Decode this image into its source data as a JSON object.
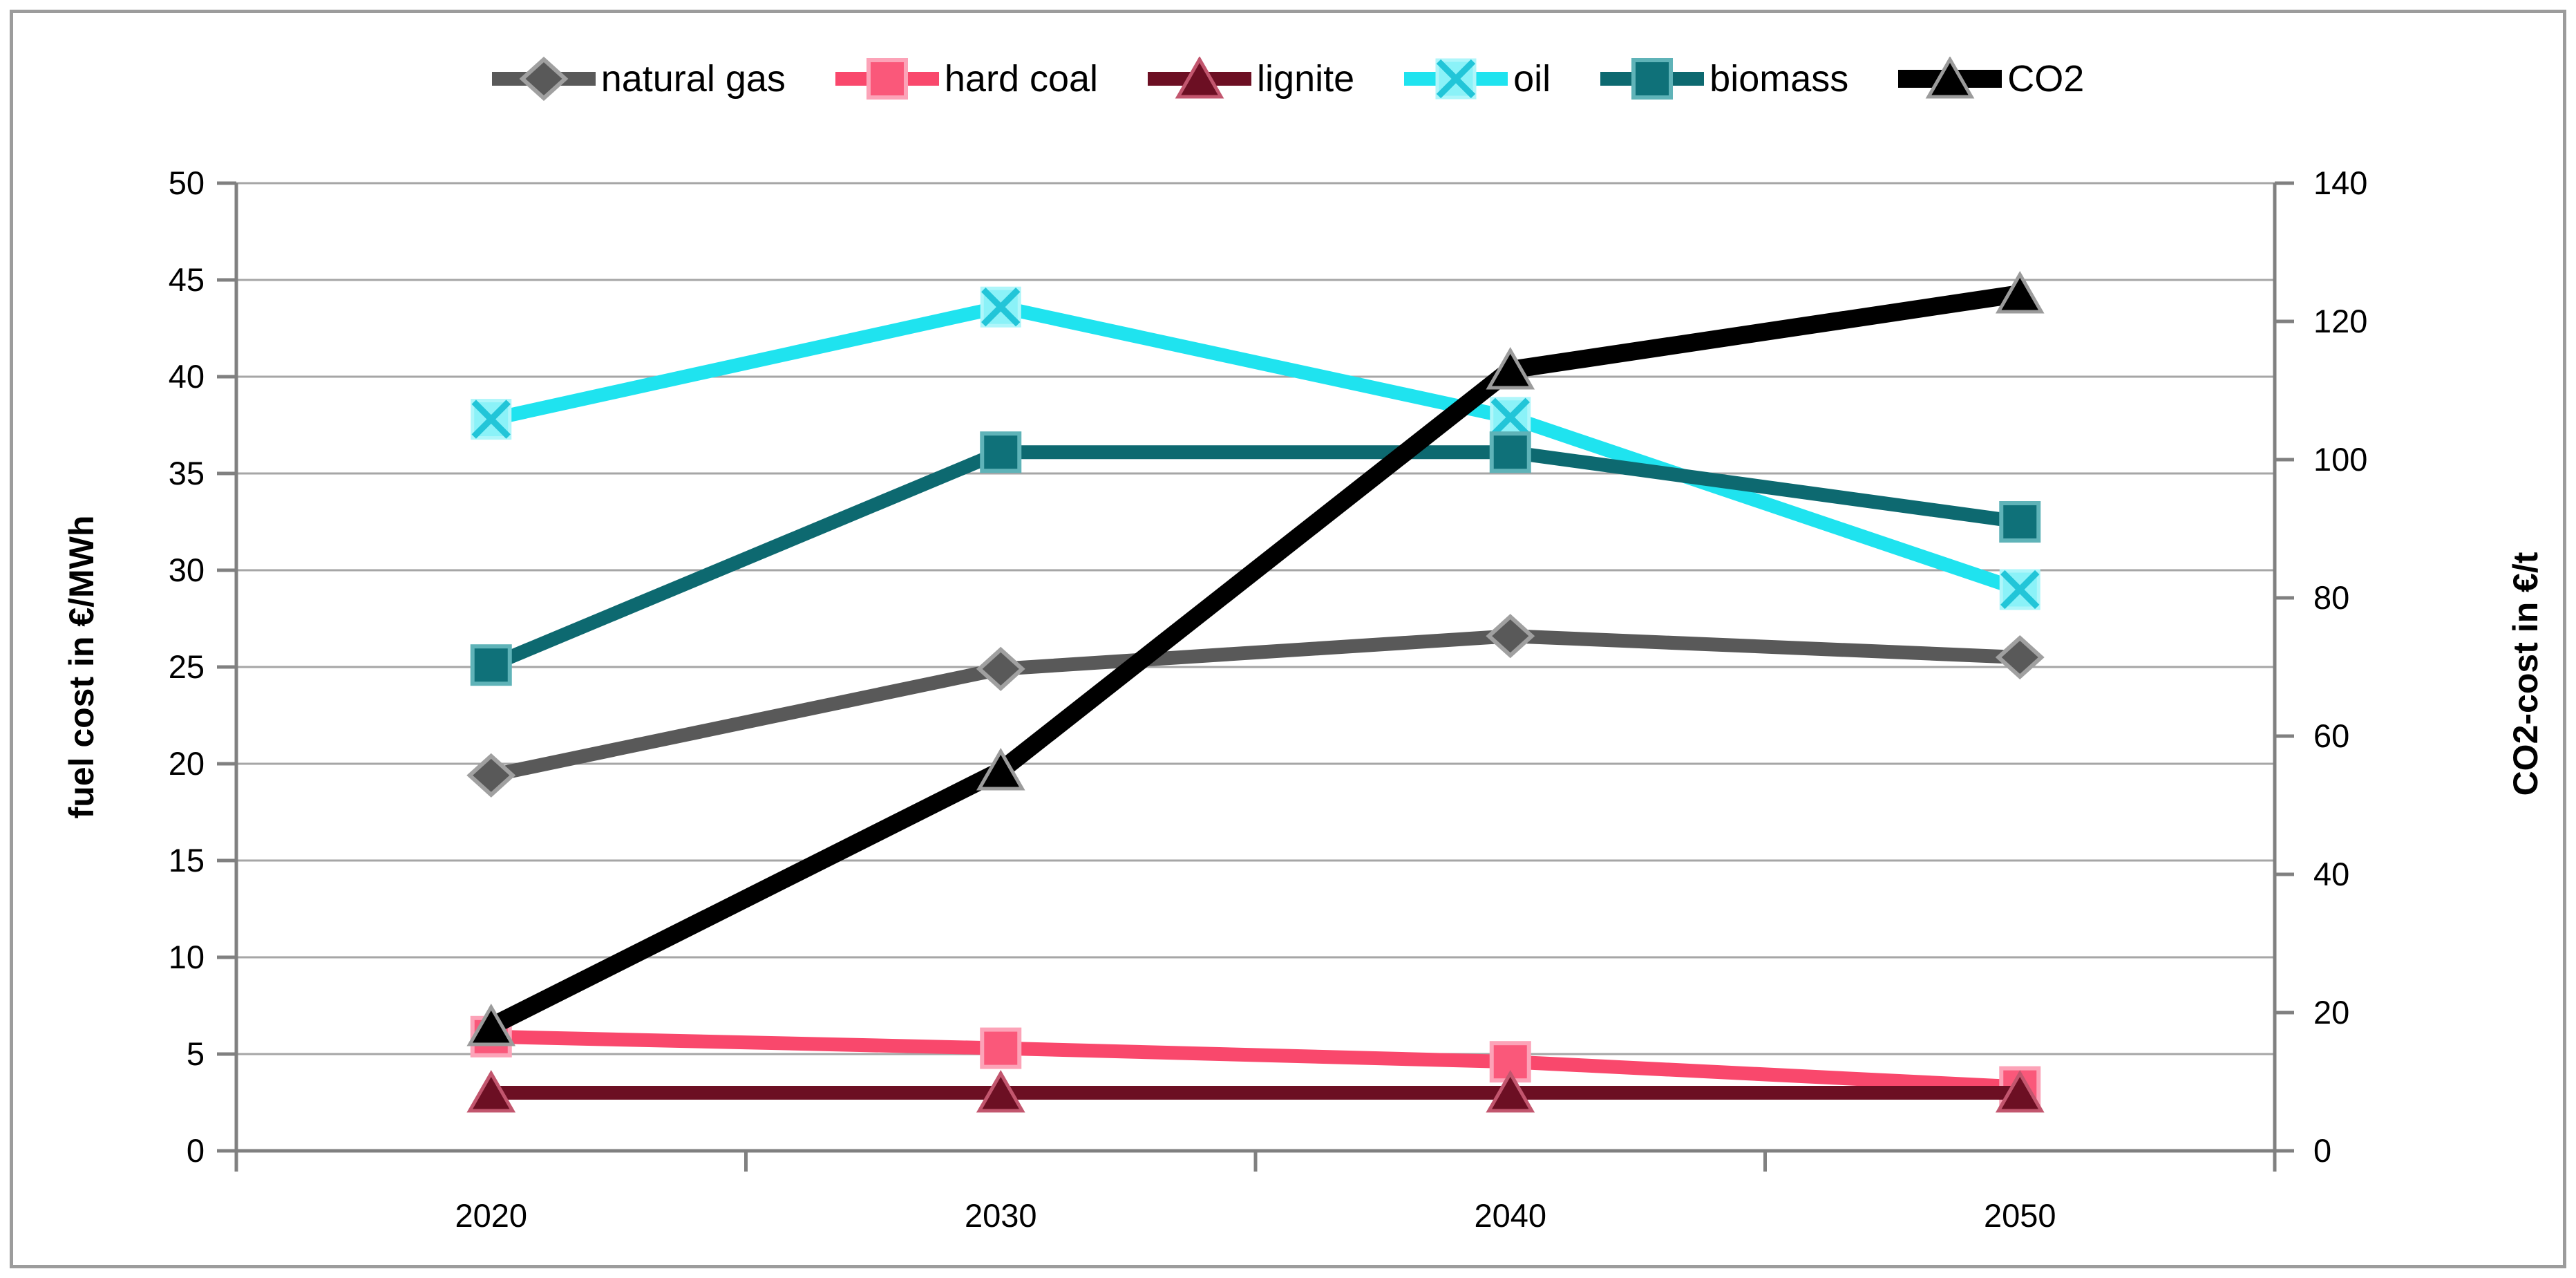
{
  "chart_data": {
    "type": "line",
    "title": "",
    "categories": [
      "2020",
      "2030",
      "2040",
      "2050"
    ],
    "left_axis": {
      "label": "fuel cost in €/MWh",
      "min": 0,
      "max": 50,
      "step": 5,
      "unit": "€/MWh"
    },
    "right_axis": {
      "label": "CO2-cost in €/t",
      "min": 0,
      "max": 140,
      "step": 20,
      "unit": "€/t"
    },
    "grid": true,
    "legend_position": "top-center",
    "style": {
      "grid_color": "#A6A6A6",
      "axis_color": "#808080",
      "frame_color": "#9C9C9C",
      "background": "#FFFFFF",
      "text_color": "#000000"
    },
    "series": [
      {
        "name": "natural gas",
        "axis": "left",
        "marker": "diamond",
        "color": "#595959",
        "marker_fill": "#595959",
        "marker_border": "#A0A0A0",
        "line_width": 20,
        "values": [
          19.4,
          24.9,
          26.6,
          25.5
        ]
      },
      {
        "name": "hard coal",
        "axis": "left",
        "marker": "square",
        "color": "#F9486C",
        "marker_fill": "#FA587A",
        "marker_border": "#FCA3B8",
        "line_width": 20,
        "values": [
          5.9,
          5.3,
          4.6,
          3.3
        ]
      },
      {
        "name": "lignite",
        "axis": "left",
        "marker": "triangle",
        "color": "#6C0F23",
        "marker_fill": "#6C0F23",
        "marker_border": "#C2566E",
        "line_width": 20,
        "values": [
          3,
          3,
          3,
          3
        ]
      },
      {
        "name": "oil",
        "axis": "left",
        "marker": "x-square",
        "color": "#1FE3EF",
        "marker_fill": "#8BF2F8",
        "marker_border": "#AFF6FA",
        "cross_color": "#22C5D8",
        "line_width": 20,
        "values": [
          37.8,
          43.6,
          37.9,
          29
        ]
      },
      {
        "name": "biomass",
        "axis": "left",
        "marker": "square",
        "color": "#0D6970",
        "marker_fill": "#0F7179",
        "marker_border": "#5FB3B8",
        "line_width": 20,
        "values": [
          25.1,
          36.1,
          36.1,
          32.5
        ]
      },
      {
        "name": "CO2",
        "axis": "right",
        "marker": "triangle",
        "color": "#000000",
        "marker_fill": "#000000",
        "marker_border": "#9B9B9B",
        "line_width": 26,
        "values": [
          18,
          55,
          113,
          124
        ]
      }
    ]
  }
}
